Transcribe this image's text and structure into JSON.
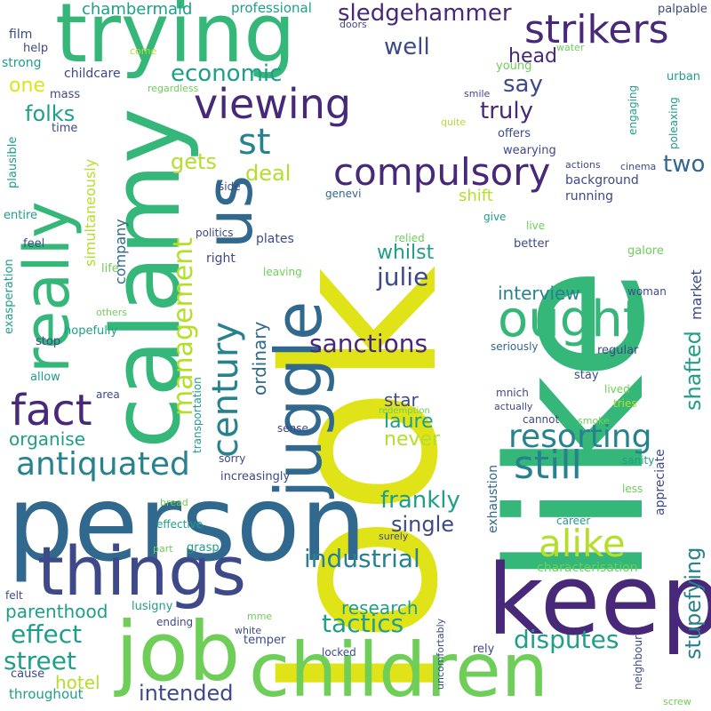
{
  "words": [
    {
      "text": "look"
    },
    {
      "text": "like"
    },
    {
      "text": "person"
    },
    {
      "text": "calamy"
    },
    {
      "text": "trying"
    },
    {
      "text": "keep"
    },
    {
      "text": "children"
    },
    {
      "text": "things"
    },
    {
      "text": "job"
    },
    {
      "text": "juggle"
    },
    {
      "text": "us"
    },
    {
      "text": "really"
    },
    {
      "text": "ought"
    },
    {
      "text": "compulsory"
    },
    {
      "text": "viewing"
    },
    {
      "text": "strikers"
    },
    {
      "text": "fact"
    },
    {
      "text": "antiquated"
    },
    {
      "text": "still"
    },
    {
      "text": "resorting"
    },
    {
      "text": "alike"
    },
    {
      "text": "century"
    },
    {
      "text": "management"
    },
    {
      "text": "industrial"
    },
    {
      "text": "tactics"
    },
    {
      "text": "disputes"
    },
    {
      "text": "stupefying"
    },
    {
      "text": "shafted"
    },
    {
      "text": "sanctions"
    },
    {
      "text": "effect"
    },
    {
      "text": "street"
    },
    {
      "text": "frankly"
    },
    {
      "text": "single"
    },
    {
      "text": "sledgehammer"
    },
    {
      "text": "st"
    },
    {
      "text": "economic"
    },
    {
      "text": "well"
    },
    {
      "text": "say"
    },
    {
      "text": "truly"
    },
    {
      "text": "two"
    },
    {
      "text": "folks"
    },
    {
      "text": "gets"
    },
    {
      "text": "deal"
    },
    {
      "text": "julie"
    },
    {
      "text": "whilst"
    },
    {
      "text": "laure"
    },
    {
      "text": "never"
    },
    {
      "text": "star"
    },
    {
      "text": "interview"
    },
    {
      "text": "intended"
    },
    {
      "text": "research"
    },
    {
      "text": "parenthood"
    },
    {
      "text": "organise"
    },
    {
      "text": "hotel"
    },
    {
      "text": "head"
    },
    {
      "text": "one"
    },
    {
      "text": "chambermaid"
    },
    {
      "text": "professional"
    },
    {
      "text": "ordinary"
    },
    {
      "text": "company"
    },
    {
      "text": "simultaneously"
    },
    {
      "text": "shift"
    },
    {
      "text": "background"
    },
    {
      "text": "running"
    },
    {
      "text": "market"
    },
    {
      "text": "appreciate"
    },
    {
      "text": "exhaustion"
    },
    {
      "text": "characterisation"
    },
    {
      "text": "film"
    },
    {
      "text": "help"
    },
    {
      "text": "strong"
    },
    {
      "text": "childcare"
    },
    {
      "text": "mass"
    },
    {
      "text": "time"
    },
    {
      "text": "plausible"
    },
    {
      "text": "entire"
    },
    {
      "text": "feel"
    },
    {
      "text": "exasperation"
    },
    {
      "text": "stop"
    },
    {
      "text": "allow"
    },
    {
      "text": "hopefully"
    },
    {
      "text": "others"
    },
    {
      "text": "life"
    },
    {
      "text": "politics"
    },
    {
      "text": "right"
    },
    {
      "text": "plates"
    },
    {
      "text": "leaving"
    },
    {
      "text": "relied"
    },
    {
      "text": "genevi"
    },
    {
      "text": "side"
    },
    {
      "text": "transportation"
    },
    {
      "text": "area"
    },
    {
      "text": "sense"
    },
    {
      "text": "sorry"
    },
    {
      "text": "increasingly"
    },
    {
      "text": "bread"
    },
    {
      "text": "effective"
    },
    {
      "text": "part"
    },
    {
      "text": "grasp"
    },
    {
      "text": "lusigny"
    },
    {
      "text": "ending"
    },
    {
      "text": "mme"
    },
    {
      "text": "white"
    },
    {
      "text": "temper"
    },
    {
      "text": "locked"
    },
    {
      "text": "uncomfortably"
    },
    {
      "text": "rely"
    },
    {
      "text": "throughout"
    },
    {
      "text": "cause"
    },
    {
      "text": "felt"
    },
    {
      "text": "regardless"
    },
    {
      "text": "come"
    },
    {
      "text": "doors"
    },
    {
      "text": "palpable"
    },
    {
      "text": "water"
    },
    {
      "text": "urban"
    },
    {
      "text": "young"
    },
    {
      "text": "engaging"
    },
    {
      "text": "poleaxing"
    },
    {
      "text": "smile"
    },
    {
      "text": "quite"
    },
    {
      "text": "offers"
    },
    {
      "text": "wearying"
    },
    {
      "text": "actions"
    },
    {
      "text": "cinema"
    },
    {
      "text": "give"
    },
    {
      "text": "live"
    },
    {
      "text": "better"
    },
    {
      "text": "galore"
    },
    {
      "text": "woman"
    },
    {
      "text": "regular"
    },
    {
      "text": "seriously"
    },
    {
      "text": "mnich"
    },
    {
      "text": "actually"
    },
    {
      "text": "stay"
    },
    {
      "text": "lived"
    },
    {
      "text": "tries"
    },
    {
      "text": "cannot"
    },
    {
      "text": "smoke"
    },
    {
      "text": "redemption"
    },
    {
      "text": "sanity"
    },
    {
      "text": "less"
    },
    {
      "text": "career"
    },
    {
      "text": "surely"
    },
    {
      "text": "neighbour"
    },
    {
      "text": "screw"
    }
  ]
}
